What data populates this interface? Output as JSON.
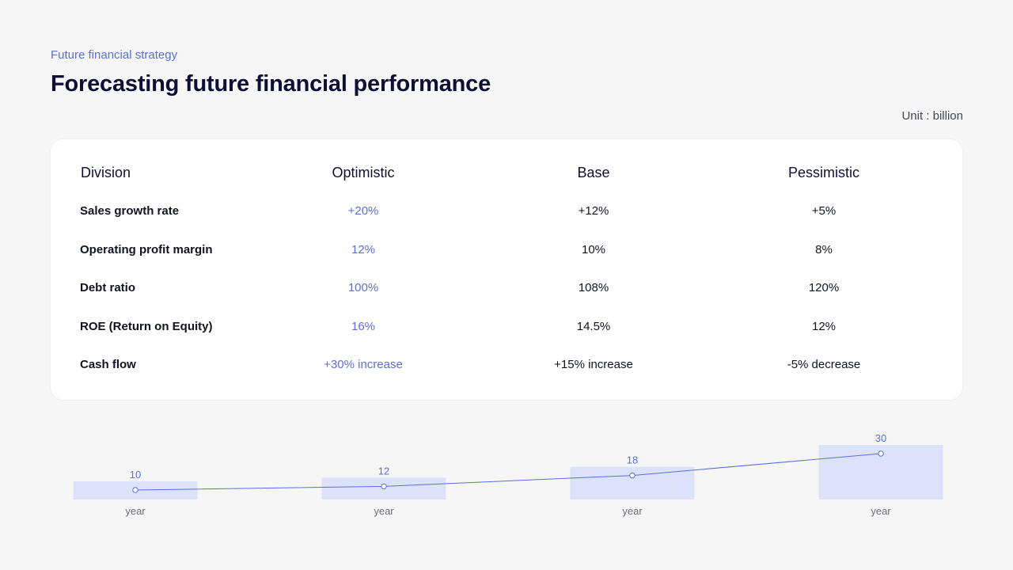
{
  "header": {
    "eyebrow": "Future financial strategy",
    "title": "Forecasting future financial performance",
    "unit": "Unit : billion"
  },
  "table": {
    "columns": [
      "Division",
      "Optimistic",
      "Base",
      "Pessimistic"
    ],
    "rows": [
      {
        "label": "Sales growth rate",
        "optimistic": "+20%",
        "base": "+12%",
        "pessimistic": "+5%"
      },
      {
        "label": "Operating profit margin",
        "optimistic": "12%",
        "base": "10%",
        "pessimistic": "8%"
      },
      {
        "label": "Debt ratio",
        "optimistic": "100%",
        "base": "108%",
        "pessimistic": "120%"
      },
      {
        "label": "ROE (Return on Equity)",
        "optimistic": "16%",
        "base": "14.5%",
        "pessimistic": "12%"
      },
      {
        "label": "Cash flow",
        "optimistic": "+30% increase",
        "base": "+15% increase",
        "pessimistic": "-5% decrease"
      }
    ]
  },
  "colors": {
    "accent": "#5a6fe0",
    "bar": "#dde2fb",
    "text": "#0d1033"
  },
  "chart_data": {
    "type": "bar",
    "categories": [
      "year",
      "year",
      "year",
      "year"
    ],
    "values": [
      10,
      12,
      18,
      30
    ],
    "overlay": "line",
    "title": "",
    "xlabel": "",
    "ylabel": "",
    "ylim": [
      0,
      30
    ],
    "grid": false
  }
}
